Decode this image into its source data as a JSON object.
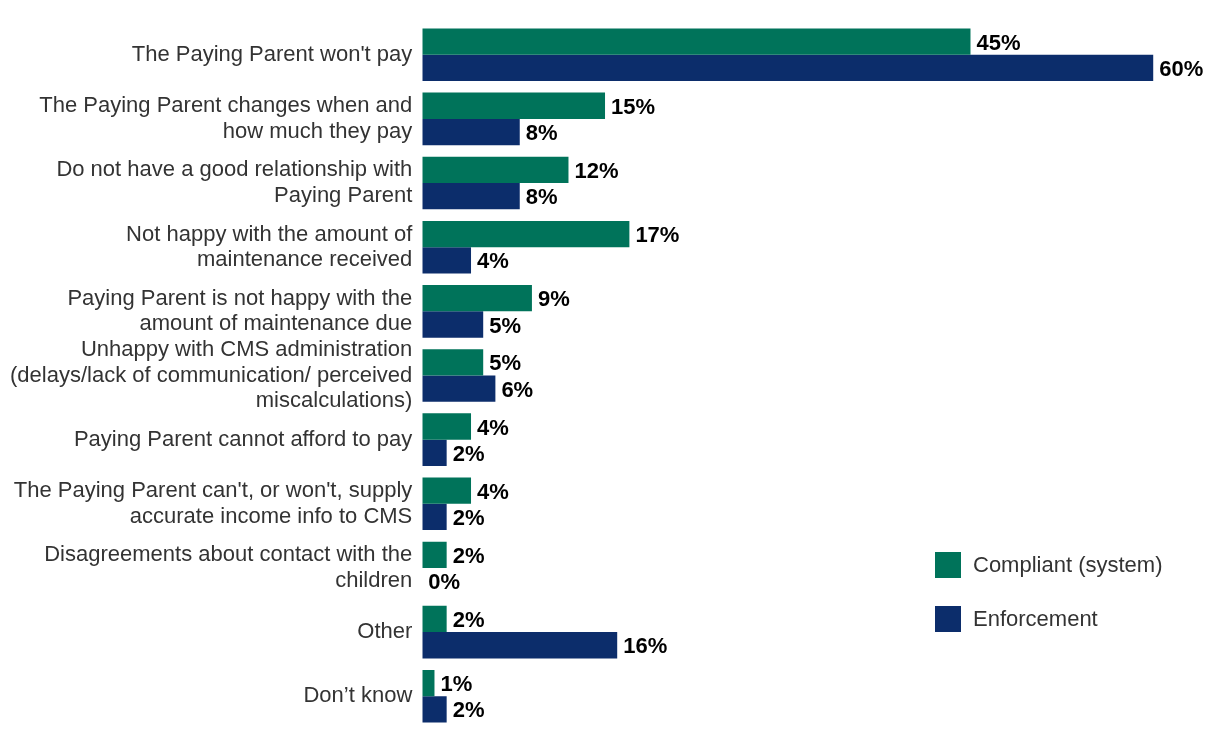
{
  "chart_data": {
    "type": "bar",
    "orientation": "horizontal",
    "categories": [
      "The Paying Parent won't pay",
      "The Paying Parent changes when and how much they pay",
      "Do not have a good relationship with Paying Parent",
      "Not happy with the amount of maintenance received",
      "Paying Parent is not happy with the amount of maintenance due",
      "Unhappy with CMS administration (delays/lack of communication/ perceived miscalculations)",
      "Paying Parent cannot afford to pay",
      "The Paying Parent can't, or won't, supply accurate income info to CMS",
      "Disagreements about contact with the children",
      "Other",
      "Don’t know"
    ],
    "series": [
      {
        "name": "Compliant (system)",
        "color": "#00735a",
        "values": [
          45,
          15,
          12,
          17,
          9,
          5,
          4,
          4,
          2,
          2,
          1
        ],
        "value_labels": [
          "45%",
          "15%",
          "12%",
          "17%",
          "9%",
          "5%",
          "4%",
          "4%",
          "2%",
          "2%",
          "1%"
        ]
      },
      {
        "name": "Enforcement",
        "color": "#0c2d6b",
        "values": [
          60,
          8,
          8,
          4,
          5,
          6,
          2,
          2,
          0,
          16,
          2
        ],
        "value_labels": [
          "60%",
          "8%",
          "8%",
          "4%",
          "5%",
          "6%",
          "2%",
          "2%",
          "0%",
          "16%",
          "2%"
        ]
      }
    ],
    "legend": "right"
  }
}
